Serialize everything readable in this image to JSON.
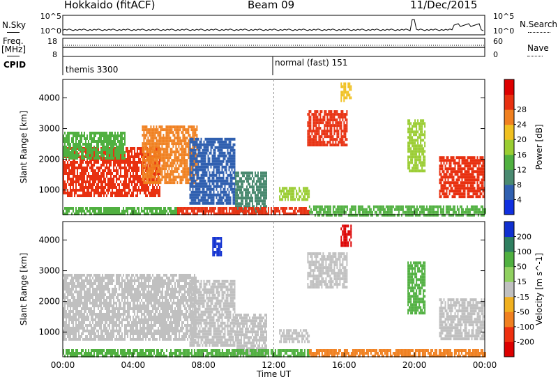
{
  "header": {
    "radar": "Hokkaido (fitACF)",
    "beam": "Beam 09",
    "date": "11/Dec/2015"
  },
  "noise_panel": {
    "left_label": "N.Sky",
    "right_label": "N.Search",
    "top_tick": "10^5",
    "bottom_tick": "10^0"
  },
  "freq_panel": {
    "left_label_1": "Freq.",
    "left_label_2": "[MHz]",
    "right_label": "Nave",
    "left_ticks": [
      "18",
      "8"
    ],
    "right_ticks": [
      "60",
      "0"
    ]
  },
  "cpid": {
    "label": "CPID",
    "mode1": "themis 3300",
    "mode2": "normal (fast) 151"
  },
  "chart_data": [
    {
      "type": "heatmap",
      "title": "",
      "xlabel": "Time UT",
      "ylabel": "Slant Range [km]",
      "xlim": [
        0,
        24
      ],
      "x_ticks": [
        "00:00",
        "04:00",
        "08:00",
        "12:00",
        "16:00",
        "20:00",
        "00:00"
      ],
      "ylim": [
        200,
        4600
      ],
      "y_ticks": [
        "1000",
        "2000",
        "3000",
        "4000"
      ],
      "colorbar": {
        "label": "Power [dB]",
        "ticks": [
          "4",
          "8",
          "12",
          "16",
          "20",
          "24",
          "28"
        ],
        "colors": [
          "#1030e0",
          "#3060b0",
          "#4a8a70",
          "#50b040",
          "#9acd32",
          "#f0c020",
          "#f08020",
          "#e83010",
          "#dd0000"
        ]
      },
      "regions": [
        {
          "t0": 0.0,
          "t1": 5.5,
          "r0": 800,
          "r1": 2400,
          "level": 26
        },
        {
          "t0": 0.0,
          "t1": 3.5,
          "r0": 2000,
          "r1": 2900,
          "level": 14
        },
        {
          "t0": 4.5,
          "t1": 7.6,
          "r0": 1200,
          "r1": 3100,
          "level": 24
        },
        {
          "t0": 7.2,
          "t1": 9.8,
          "r0": 600,
          "r1": 2700,
          "level": 7
        },
        {
          "t0": 9.8,
          "t1": 11.6,
          "r0": 300,
          "r1": 1600,
          "level": 8
        },
        {
          "t0": 12.3,
          "t1": 14.0,
          "r0": 700,
          "r1": 1100,
          "level": 17
        },
        {
          "t0": 13.9,
          "t1": 16.2,
          "r0": 2500,
          "r1": 3600,
          "level": 27
        },
        {
          "t0": 15.8,
          "t1": 16.4,
          "r0": 3900,
          "r1": 4500,
          "level": 18
        },
        {
          "t0": 19.6,
          "t1": 20.6,
          "r0": 1600,
          "r1": 3300,
          "level": 16
        },
        {
          "t0": 21.4,
          "t1": 24.0,
          "r0": 800,
          "r1": 2100,
          "level": 25
        },
        {
          "t0": 6.5,
          "t1": 14.0,
          "r0": 200,
          "r1": 450,
          "level": 27
        },
        {
          "t0": 14.0,
          "t1": 24.0,
          "r0": 200,
          "r1": 500,
          "level": 14
        },
        {
          "t0": 0.0,
          "t1": 6.5,
          "r0": 200,
          "r1": 450,
          "level": 12
        }
      ]
    },
    {
      "type": "heatmap",
      "title": "",
      "xlabel": "Time UT",
      "ylabel": "Slant Range [km]",
      "xlim": [
        0,
        24
      ],
      "x_ticks": [
        "00:00",
        "04:00",
        "08:00",
        "12:00",
        "16:00",
        "20:00",
        "00:00"
      ],
      "ylim": [
        200,
        4600
      ],
      "y_ticks": [
        "1000",
        "2000",
        "3000",
        "4000"
      ],
      "colorbar": {
        "label": "Velocity [m s^-1]",
        "ticks": [
          "200",
          "100",
          "50",
          "15",
          "-15",
          "-50",
          "-100",
          "-200"
        ],
        "colors": [
          "#1030d0",
          "#2f7f60",
          "#50b040",
          "#90d060",
          "#c0c0c0",
          "#f0b020",
          "#f08020",
          "#ee3010",
          "#dd0000"
        ]
      },
      "regions": [
        {
          "t0": 0.0,
          "t1": 7.6,
          "r0": 800,
          "r1": 2900,
          "velocity": 0
        },
        {
          "t0": 7.2,
          "t1": 9.8,
          "r0": 600,
          "r1": 2700,
          "velocity": 0
        },
        {
          "t0": 8.5,
          "t1": 9.0,
          "r0": 3500,
          "r1": 4100,
          "velocity": 200
        },
        {
          "t0": 9.8,
          "t1": 11.6,
          "r0": 300,
          "r1": 1600,
          "velocity": 0
        },
        {
          "t0": 12.3,
          "t1": 14.0,
          "r0": 700,
          "r1": 1100,
          "velocity": 0
        },
        {
          "t0": 13.9,
          "t1": 16.2,
          "r0": 2500,
          "r1": 3600,
          "velocity": 0
        },
        {
          "t0": 15.8,
          "t1": 16.4,
          "r0": 3800,
          "r1": 4500,
          "velocity": -200
        },
        {
          "t0": 19.6,
          "t1": 20.6,
          "r0": 1600,
          "r1": 3300,
          "velocity": 40
        },
        {
          "t0": 21.4,
          "t1": 24.0,
          "r0": 800,
          "r1": 2100,
          "velocity": 0
        },
        {
          "t0": 0.0,
          "t1": 6.5,
          "r0": 200,
          "r1": 450,
          "velocity": 30
        },
        {
          "t0": 6.5,
          "t1": 14.0,
          "r0": 200,
          "r1": 450,
          "velocity": 30
        },
        {
          "t0": 14.0,
          "t1": 24.0,
          "r0": 200,
          "r1": 450,
          "velocity": -60
        }
      ]
    }
  ]
}
